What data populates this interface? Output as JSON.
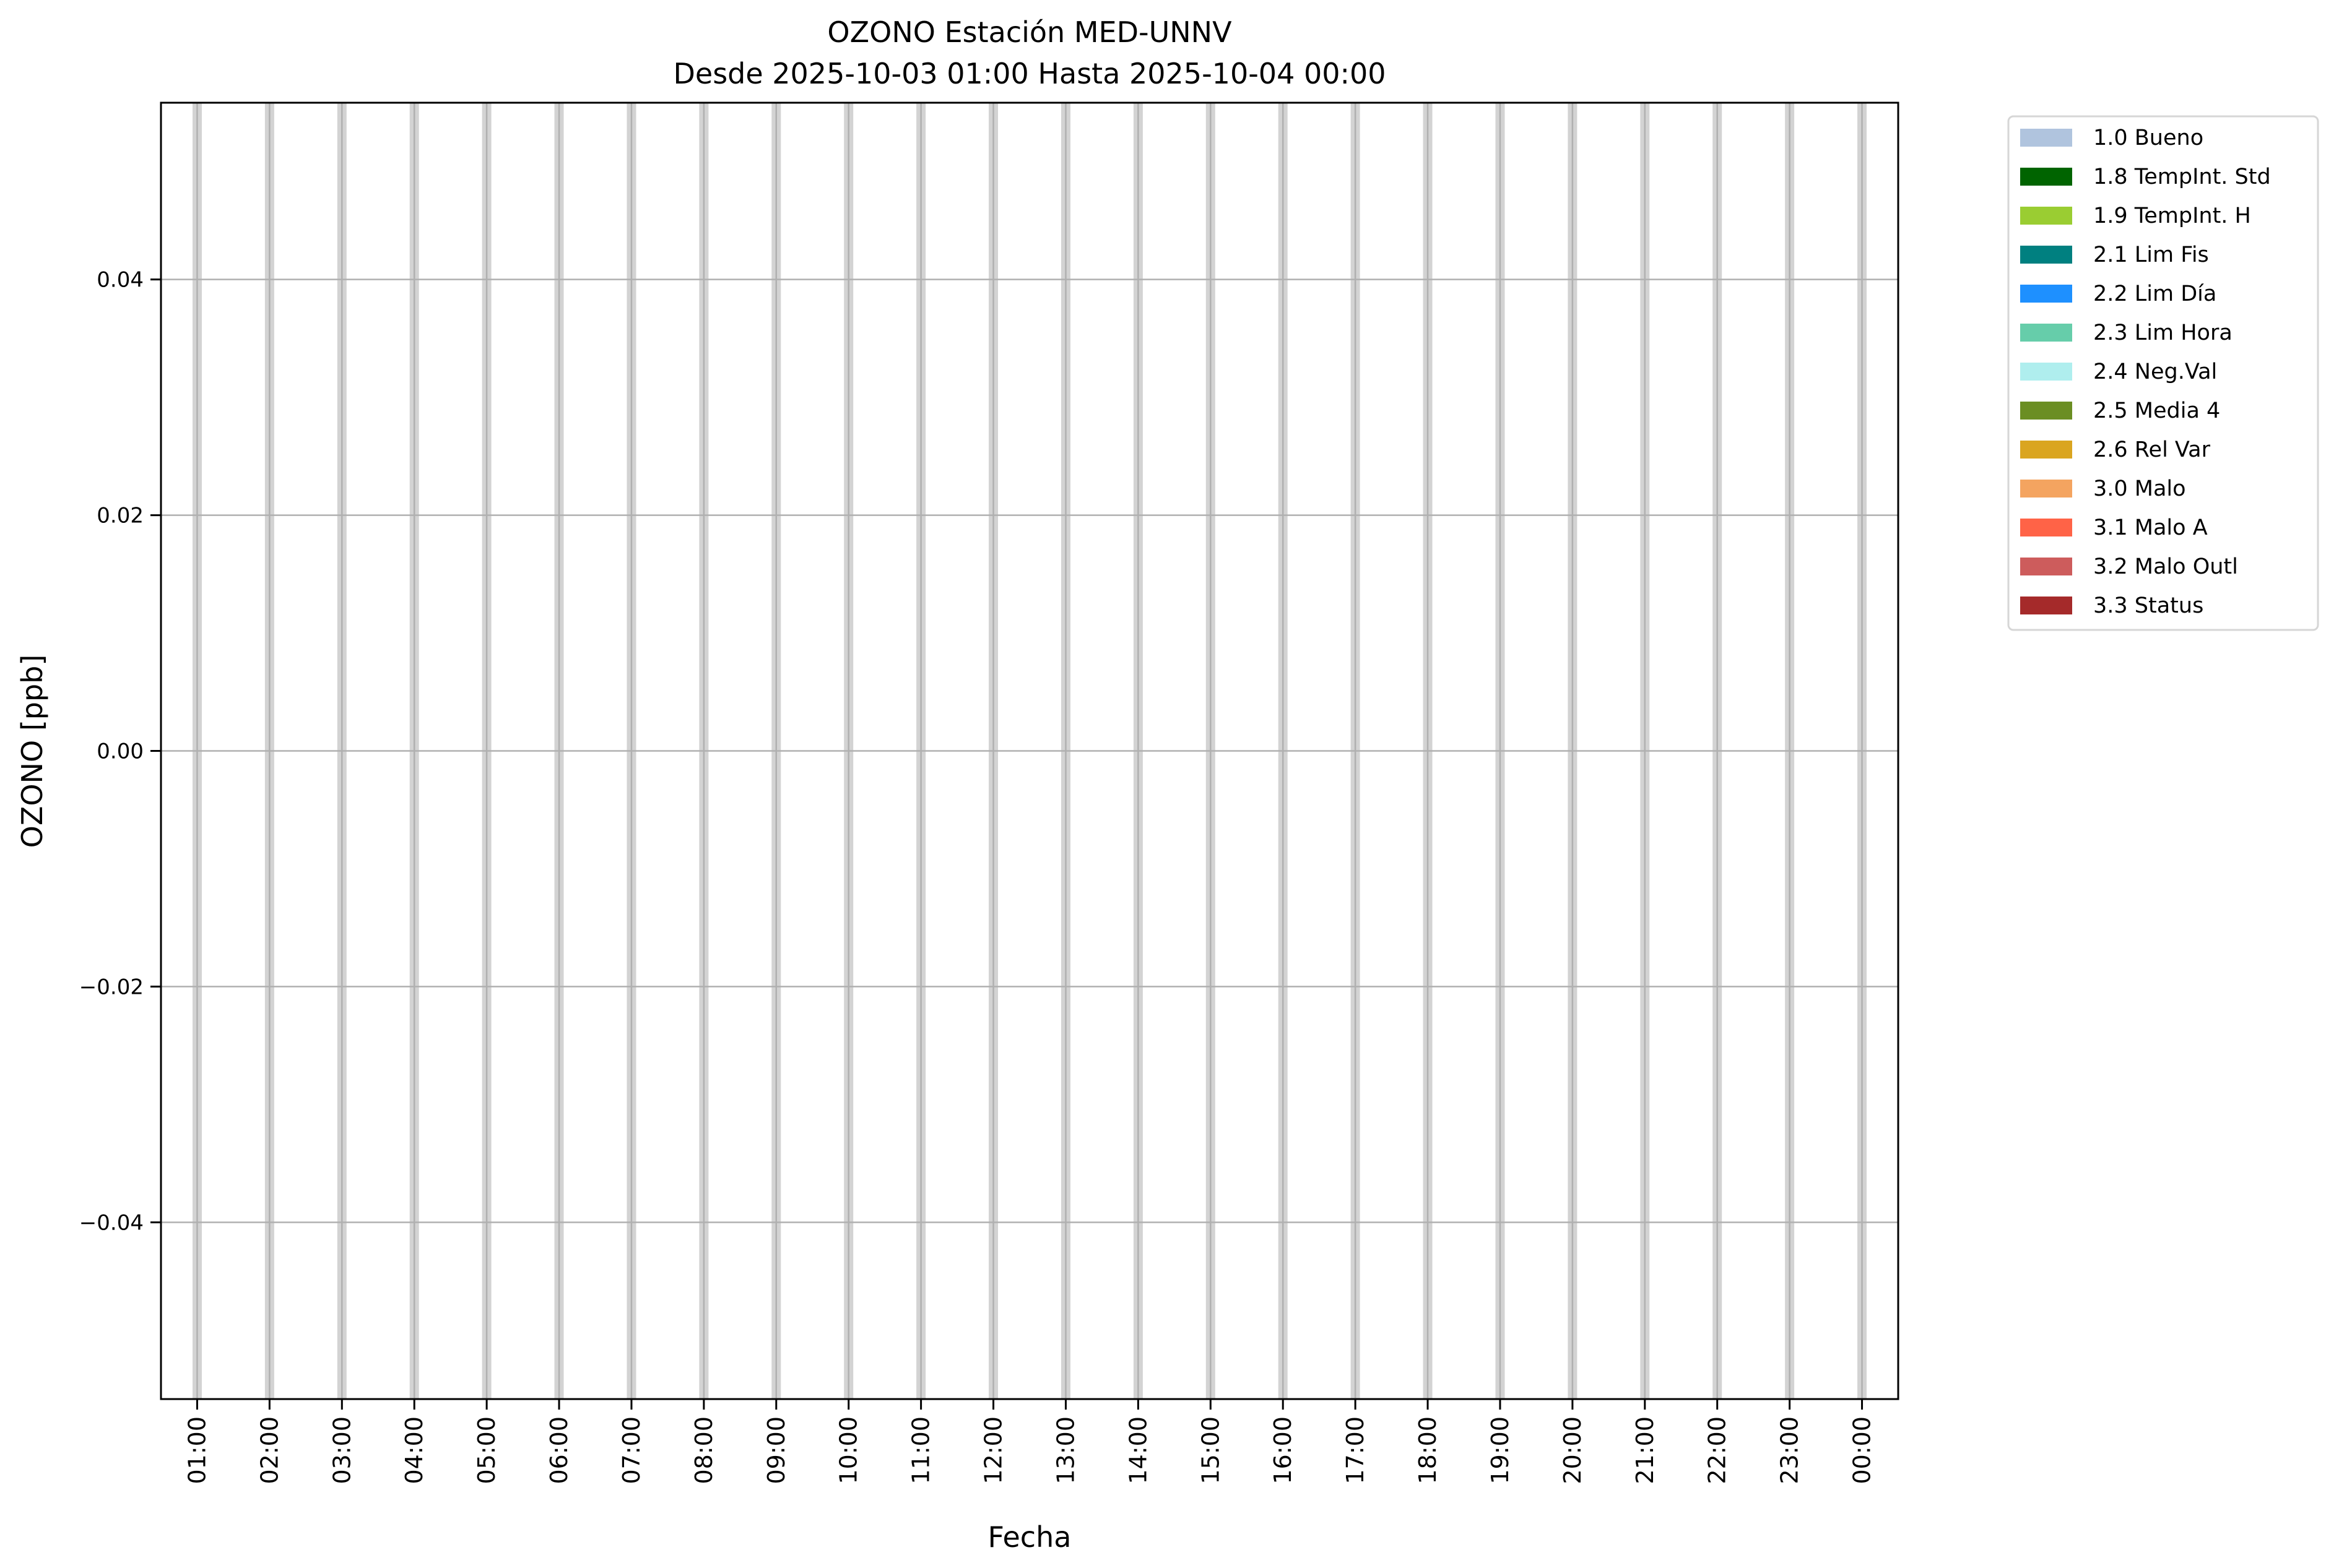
{
  "chart_data": {
    "type": "bar",
    "title_line1": "OZONO Estación MED-UNNV",
    "title_line2": "Desde 2025-10-03 01:00 Hasta 2025-10-04 00:00",
    "xlabel": "Fecha",
    "ylabel": "OZONO [ppb]",
    "categories": [
      "01:00",
      "02:00",
      "03:00",
      "04:00",
      "05:00",
      "06:00",
      "07:00",
      "08:00",
      "09:00",
      "10:00",
      "11:00",
      "12:00",
      "13:00",
      "14:00",
      "15:00",
      "16:00",
      "17:00",
      "18:00",
      "19:00",
      "20:00",
      "21:00",
      "22:00",
      "23:00",
      "00:00"
    ],
    "values": [
      null,
      null,
      null,
      null,
      null,
      null,
      null,
      null,
      null,
      null,
      null,
      null,
      null,
      null,
      null,
      null,
      null,
      null,
      null,
      null,
      null,
      null,
      null,
      null
    ],
    "ylim": [
      -0.055,
      0.055
    ],
    "yticks": [
      -0.04,
      -0.02,
      0.0,
      0.02,
      0.04
    ],
    "ytick_labels": [
      "−0.04",
      "−0.02",
      "0.00",
      "0.02",
      "0.04"
    ],
    "grid": true,
    "hour_band_color": "#d3d3d3",
    "grid_color": "#b0b0b0",
    "legend_placement": "outside-right-top",
    "legend": [
      {
        "label": "1.0 Bueno",
        "color": "#b0c4de"
      },
      {
        "label": "1.8 TempInt. Std",
        "color": "#006400"
      },
      {
        "label": "1.9 TempInt. H",
        "color": "#9acd32"
      },
      {
        "label": "2.1 Lim Fis",
        "color": "#008080"
      },
      {
        "label": "2.2 Lim Día",
        "color": "#1e90ff"
      },
      {
        "label": "2.3 Lim Hora",
        "color": "#66cdaa"
      },
      {
        "label": "2.4 Neg.Val",
        "color": "#afeeee"
      },
      {
        "label": "2.5 Media 4",
        "color": "#6b8e23"
      },
      {
        "label": "2.6 Rel Var",
        "color": "#daa520"
      },
      {
        "label": "3.0 Malo",
        "color": "#f4a460"
      },
      {
        "label": "3.1 Malo A",
        "color": "#ff6347"
      },
      {
        "label": "3.2 Malo Outl",
        "color": "#cd5c5c"
      },
      {
        "label": "3.3 Status",
        "color": "#a52a2a"
      }
    ]
  }
}
